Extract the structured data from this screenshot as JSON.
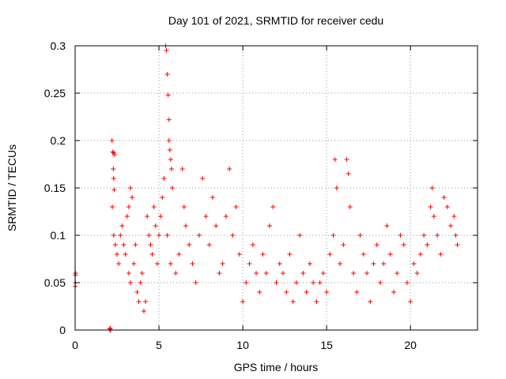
{
  "chart_data": {
    "type": "scatter",
    "title": "Day 101 of 2021, SRMTID for receiver cedu",
    "xlabel": "GPS time / hours",
    "ylabel": "SRMTID / TECUs",
    "xlim": [
      0,
      24
    ],
    "ylim": [
      0,
      0.3
    ],
    "grid": true,
    "marker": "+",
    "colors": {
      "points": "#ff0000",
      "grid": "#999999",
      "axis": "#000000"
    },
    "x_ticks": [
      {
        "value": 0,
        "label": "0"
      },
      {
        "value": 5,
        "label": "5"
      },
      {
        "value": 10,
        "label": "10"
      },
      {
        "value": 15,
        "label": "15"
      },
      {
        "value": 20,
        "label": "20"
      }
    ],
    "y_ticks": [
      {
        "value": 0,
        "label": "0"
      },
      {
        "value": 0.05,
        "label": "0.05"
      },
      {
        "value": 0.1,
        "label": "0.1"
      },
      {
        "value": 0.15,
        "label": "0.15"
      },
      {
        "value": 0.2,
        "label": "0.2"
      },
      {
        "value": 0.25,
        "label": "0.25"
      },
      {
        "value": 0.3,
        "label": "0.3"
      }
    ],
    "points": [
      [
        0.02,
        0.05
      ],
      [
        0.03,
        0.06
      ],
      [
        0.02,
        0.058
      ],
      [
        0.01,
        0.046
      ],
      [
        2.08,
        0.0
      ],
      [
        2.1,
        0.002
      ],
      [
        2.07,
        0.001
      ],
      [
        2.12,
        0.0
      ],
      [
        2.2,
        0.2
      ],
      [
        2.25,
        0.188
      ],
      [
        2.3,
        0.187
      ],
      [
        2.35,
        0.185
      ],
      [
        2.28,
        0.17
      ],
      [
        2.3,
        0.16
      ],
      [
        2.33,
        0.148
      ],
      [
        2.22,
        0.13
      ],
      [
        2.3,
        0.1
      ],
      [
        2.4,
        0.09
      ],
      [
        2.5,
        0.08
      ],
      [
        2.6,
        0.07
      ],
      [
        2.7,
        0.1
      ],
      [
        2.8,
        0.11
      ],
      [
        2.9,
        0.09
      ],
      [
        3.0,
        0.08
      ],
      [
        3.1,
        0.12
      ],
      [
        3.2,
        0.13
      ],
      [
        3.3,
        0.15
      ],
      [
        3.4,
        0.14
      ],
      [
        3.2,
        0.06
      ],
      [
        3.3,
        0.05
      ],
      [
        3.5,
        0.07
      ],
      [
        3.6,
        0.09
      ],
      [
        3.7,
        0.04
      ],
      [
        3.8,
        0.03
      ],
      [
        3.9,
        0.05
      ],
      [
        4.0,
        0.06
      ],
      [
        4.1,
        0.02
      ],
      [
        4.2,
        0.03
      ],
      [
        4.3,
        0.12
      ],
      [
        4.4,
        0.1
      ],
      [
        4.5,
        0.09
      ],
      [
        4.6,
        0.08
      ],
      [
        4.7,
        0.13
      ],
      [
        4.8,
        0.11
      ],
      [
        4.9,
        0.07
      ],
      [
        5.0,
        0.1
      ],
      [
        5.1,
        0.12
      ],
      [
        5.2,
        0.14
      ],
      [
        5.3,
        0.16
      ],
      [
        5.4,
        0.3
      ],
      [
        5.45,
        0.295
      ],
      [
        5.5,
        0.27
      ],
      [
        5.55,
        0.248
      ],
      [
        5.6,
        0.222
      ],
      [
        5.6,
        0.2
      ],
      [
        5.65,
        0.19
      ],
      [
        5.7,
        0.18
      ],
      [
        5.75,
        0.17
      ],
      [
        5.8,
        0.15
      ],
      [
        5.5,
        0.1
      ],
      [
        5.7,
        0.07
      ],
      [
        6.0,
        0.06
      ],
      [
        6.2,
        0.08
      ],
      [
        6.4,
        0.17
      ],
      [
        6.5,
        0.13
      ],
      [
        6.6,
        0.11
      ],
      [
        6.8,
        0.09
      ],
      [
        7.0,
        0.07
      ],
      [
        7.2,
        0.05
      ],
      [
        7.4,
        0.1
      ],
      [
        7.6,
        0.16
      ],
      [
        7.8,
        0.12
      ],
      [
        8.0,
        0.09
      ],
      [
        8.2,
        0.14
      ],
      [
        8.4,
        0.11
      ],
      [
        8.6,
        0.06
      ],
      [
        8.8,
        0.07
      ],
      [
        9.0,
        0.12
      ],
      [
        9.2,
        0.17
      ],
      [
        9.4,
        0.1
      ],
      [
        9.6,
        0.13
      ],
      [
        9.8,
        0.08
      ],
      [
        10.0,
        0.03
      ],
      [
        10.2,
        0.05
      ],
      [
        10.4,
        0.07
      ],
      [
        10.6,
        0.09
      ],
      [
        10.8,
        0.06
      ],
      [
        11.0,
        0.04
      ],
      [
        11.2,
        0.08
      ],
      [
        11.4,
        0.06
      ],
      [
        11.6,
        0.11
      ],
      [
        11.8,
        0.13
      ],
      [
        12.0,
        0.05
      ],
      [
        12.2,
        0.07
      ],
      [
        12.4,
        0.06
      ],
      [
        12.6,
        0.04
      ],
      [
        12.8,
        0.08
      ],
      [
        13.0,
        0.03
      ],
      [
        13.2,
        0.05
      ],
      [
        13.4,
        0.1
      ],
      [
        13.6,
        0.06
      ],
      [
        13.8,
        0.04
      ],
      [
        14.0,
        0.07
      ],
      [
        14.2,
        0.05
      ],
      [
        14.4,
        0.03
      ],
      [
        14.6,
        0.05
      ],
      [
        14.8,
        0.06
      ],
      [
        15.0,
        0.04
      ],
      [
        15.2,
        0.08
      ],
      [
        15.4,
        0.1
      ],
      [
        15.5,
        0.18
      ],
      [
        15.6,
        0.15
      ],
      [
        15.8,
        0.07
      ],
      [
        16.0,
        0.09
      ],
      [
        16.2,
        0.18
      ],
      [
        16.3,
        0.165
      ],
      [
        16.4,
        0.13
      ],
      [
        16.6,
        0.06
      ],
      [
        16.8,
        0.04
      ],
      [
        17.0,
        0.1
      ],
      [
        17.2,
        0.08
      ],
      [
        17.4,
        0.06
      ],
      [
        17.6,
        0.03
      ],
      [
        17.8,
        0.07
      ],
      [
        18.0,
        0.09
      ],
      [
        18.2,
        0.05
      ],
      [
        18.4,
        0.07
      ],
      [
        18.6,
        0.11
      ],
      [
        18.8,
        0.08
      ],
      [
        19.0,
        0.04
      ],
      [
        19.2,
        0.06
      ],
      [
        19.4,
        0.1
      ],
      [
        19.6,
        0.09
      ],
      [
        19.8,
        0.05
      ],
      [
        20.0,
        0.03
      ],
      [
        20.2,
        0.07
      ],
      [
        20.4,
        0.06
      ],
      [
        20.6,
        0.08
      ],
      [
        20.8,
        0.1
      ],
      [
        21.0,
        0.09
      ],
      [
        21.2,
        0.13
      ],
      [
        21.3,
        0.15
      ],
      [
        21.4,
        0.12
      ],
      [
        21.6,
        0.1
      ],
      [
        21.8,
        0.08
      ],
      [
        22.0,
        0.14
      ],
      [
        22.2,
        0.13
      ],
      [
        22.4,
        0.11
      ],
      [
        22.6,
        0.12
      ],
      [
        22.8,
        0.09
      ],
      [
        22.7,
        0.1
      ]
    ]
  }
}
